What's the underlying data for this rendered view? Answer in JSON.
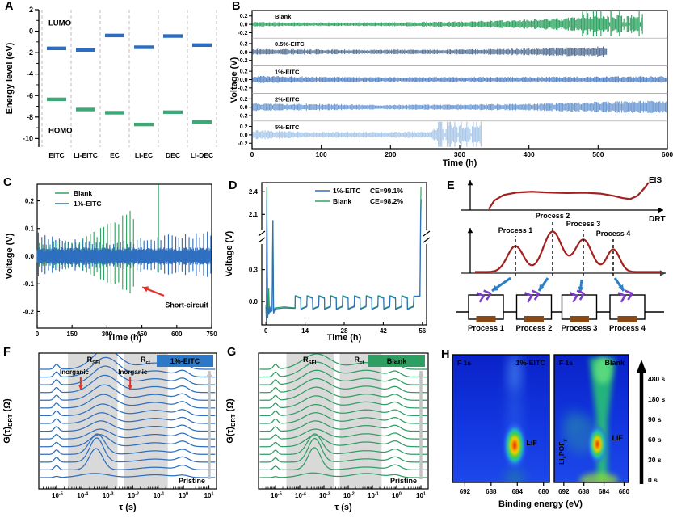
{
  "panels": {
    "A": {
      "label": "A",
      "ylabel": "Energy level (eV)",
      "lumo": "LUMO",
      "homo": "HOMO"
    },
    "B": {
      "label": "B",
      "ylabel": "Voltage (V)",
      "xlabel": "Time (h)"
    },
    "C": {
      "label": "C",
      "ylabel": "Voltage (V)",
      "xlabel": "Time (h)",
      "annotation": "Short-circuit"
    },
    "D": {
      "label": "D",
      "ylabel": "Voltage (V)",
      "xlabel": "Time (h)",
      "legend": [
        {
          "name": "1%-EITC",
          "ce": "CE=99.1%"
        },
        {
          "name": "Blank",
          "ce": "CE=98.2%"
        }
      ]
    },
    "E": {
      "label": "E",
      "eis": "EIS",
      "drt": "DRT",
      "peak_labels": [
        "Process 1",
        "Process 2",
        "Process 3",
        "Process 4"
      ],
      "circuit_labels": [
        "Process 1",
        "Process 2",
        "Process 3",
        "Process 4"
      ]
    },
    "F": {
      "label": "F",
      "badge": "1%-EITC",
      "ylabel_parts": [
        "G(τ)",
        "DRT",
        " (Ω)"
      ],
      "xlabel": "τ (s)",
      "band_labels": [
        [
          "R",
          "SEI"
        ],
        [
          "R",
          "ct"
        ]
      ],
      "inorganic": "Inorganic",
      "pristine": "Pristine"
    },
    "G": {
      "label": "G",
      "badge": "Blank",
      "ylabel_parts": [
        "G(τ)",
        "DRT",
        " (Ω)"
      ],
      "xlabel": "τ (s)",
      "band_labels": [
        [
          "R",
          "SEI"
        ],
        [
          "R",
          "ct"
        ]
      ],
      "pristine": "Pristine"
    },
    "H": {
      "label": "H",
      "xlabel": "Binding energy (eV)",
      "panels": [
        {
          "corner": "F 1s",
          "name": "1%-EITC",
          "species": "LiF"
        },
        {
          "corner": "F 1s",
          "name": "Blank",
          "species": "LiF",
          "extra_parts": [
            "Li",
            "x",
            "POF",
            "y"
          ]
        }
      ],
      "times": [
        "480 s",
        "180 s",
        "90 s",
        "60 s",
        "30 s",
        "0 s"
      ]
    }
  },
  "chart_data": [
    {
      "panel": "A",
      "type": "scatter",
      "categories": [
        "EITC",
        "Li-EITC",
        "EC",
        "Li-EC",
        "DEC",
        "Li-DEC"
      ],
      "series": [
        {
          "name": "LUMO",
          "color": "#2d6cc0",
          "values": [
            -1.6,
            -1.75,
            -0.4,
            -1.5,
            -0.45,
            -1.3
          ]
        },
        {
          "name": "HOMO",
          "color": "#3fa877",
          "values": [
            -6.35,
            -7.3,
            -7.6,
            -8.7,
            -7.55,
            -8.45
          ]
        }
      ],
      "ylim": [
        -10.8,
        2
      ],
      "yticks": [
        2,
        0,
        -2,
        -4,
        -6,
        -8,
        -10
      ]
    },
    {
      "panel": "B",
      "type": "line",
      "xlim": [
        0,
        600
      ],
      "xticks": [
        0,
        100,
        200,
        300,
        400,
        500,
        600
      ],
      "sub_ylim": [
        -0.33,
        0.33
      ],
      "sub_yticks": [
        0.2,
        0.0,
        -0.2
      ],
      "traces": [
        {
          "name": "Blank",
          "color": "#33a464",
          "end": 565,
          "chaos_from": 470,
          "envelope": [
            [
              0,
              0.06
            ],
            [
              80,
              0.045
            ],
            [
              200,
              0.05
            ],
            [
              300,
              0.07
            ],
            [
              380,
              0.1
            ],
            [
              450,
              0.15
            ],
            [
              500,
              0.2
            ],
            [
              565,
              0.24
            ]
          ]
        },
        {
          "name": "0.5%-EITC",
          "color": "#5a7499",
          "end": 512,
          "chaos_from": null,
          "envelope": [
            [
              0,
              0.075
            ],
            [
              150,
              0.055
            ],
            [
              300,
              0.06
            ],
            [
              420,
              0.09
            ],
            [
              512,
              0.13
            ]
          ]
        },
        {
          "name": "1%-EITC",
          "color": "#5b87c6",
          "end": 600,
          "chaos_from": null,
          "envelope": [
            [
              0,
              0.09
            ],
            [
              150,
              0.06
            ],
            [
              400,
              0.065
            ],
            [
              600,
              0.08
            ]
          ]
        },
        {
          "name": "2%-EITC",
          "color": "#6f9bd4",
          "end": 600,
          "chaos_from": null,
          "envelope": [
            [
              0,
              0.095
            ],
            [
              200,
              0.06
            ],
            [
              400,
              0.08
            ],
            [
              500,
              0.13
            ],
            [
              600,
              0.17
            ]
          ]
        },
        {
          "name": "5%-EITC",
          "color": "#abc9e9",
          "end": 332,
          "chaos_from": 266,
          "envelope": [
            [
              0,
              0.12
            ],
            [
              80,
              0.07
            ],
            [
              200,
              0.07
            ],
            [
              258,
              0.09
            ],
            [
              268,
              0.2
            ],
            [
              332,
              0.24
            ]
          ]
        }
      ]
    },
    {
      "panel": "C",
      "type": "line",
      "xlim": [
        0,
        750
      ],
      "xticks": [
        0,
        150,
        300,
        450,
        600,
        750
      ],
      "ylim": [
        -0.26,
        0.26
      ],
      "yticks": [
        0.2,
        0.1,
        0.0,
        -0.1,
        -0.2
      ],
      "annot_color": "#e8312a",
      "series": [
        {
          "name": "Blank",
          "color": "#33a464",
          "start": 8,
          "end": 425,
          "period": 15.5,
          "outlier_t": 521,
          "envelope": [
            [
              0,
              0.05
            ],
            [
              150,
              0.06
            ],
            [
              250,
              0.09
            ],
            [
              330,
              0.13
            ],
            [
              400,
              0.17
            ],
            [
              425,
              0.17
            ]
          ]
        },
        {
          "name": "1%-EITC",
          "color": "#2f6fc0",
          "start": 5,
          "end": 748,
          "period": 14.8,
          "envelope": [
            [
              0,
              0.1
            ],
            [
              120,
              0.06
            ],
            [
              350,
              0.055
            ],
            [
              600,
              0.08
            ],
            [
              748,
              0.1
            ]
          ]
        }
      ]
    },
    {
      "panel": "D",
      "type": "line",
      "xticks": [
        0,
        14,
        28,
        42,
        56
      ],
      "lower_ticks": [
        0.0,
        0.3
      ],
      "upper_ticks": [
        2.1,
        2.4
      ],
      "green": "#33a464",
      "blue": "#2f6fc0",
      "ce_color": "#d42020",
      "pre_green": [
        [
          0,
          -0.03
        ],
        [
          0.15,
          -0.17
        ],
        [
          0.3,
          2.46
        ],
        [
          0.5,
          0.3
        ],
        [
          0.62,
          -0.13
        ],
        [
          0.85,
          -0.1
        ],
        [
          1.0,
          0.12
        ],
        [
          1.2,
          -0.05
        ],
        [
          1.5,
          -0.1
        ],
        [
          2.2,
          -0.09
        ],
        [
          2.45,
          2.0
        ],
        [
          2.7,
          -0.1
        ],
        [
          3.2,
          -0.06
        ],
        [
          6.5,
          -0.05
        ],
        [
          10.42,
          -0.06
        ]
      ],
      "pre_blue": [
        [
          0,
          -0.05
        ],
        [
          0.15,
          -0.19
        ],
        [
          0.3,
          2.28
        ],
        [
          0.5,
          0.25
        ],
        [
          0.65,
          -0.15
        ],
        [
          0.9,
          -0.06
        ],
        [
          1.1,
          -0.12
        ],
        [
          1.4,
          -0.05
        ],
        [
          1.7,
          -0.1
        ],
        [
          2.2,
          -0.08
        ],
        [
          2.5,
          2.02
        ],
        [
          2.75,
          -0.11
        ],
        [
          3.3,
          -0.07
        ],
        [
          6.5,
          -0.06
        ],
        [
          10.42,
          -0.065
        ]
      ],
      "cycles": {
        "start": 10.45,
        "n": 10,
        "period": 4.24,
        "high": 0.052,
        "high2": 0.033,
        "low": -0.071,
        "low2": -0.047
      },
      "post_green": [
        [
          52.95,
          0.05
        ],
        [
          55.1,
          0.052
        ],
        [
          55.35,
          2.1
        ],
        [
          55.5,
          2.46
        ]
      ],
      "post_blue": [
        [
          52.95,
          0.048
        ],
        [
          55.15,
          0.05
        ],
        [
          55.4,
          2.05
        ],
        [
          55.55,
          2.3
        ]
      ]
    },
    {
      "panel": "E",
      "type": "diagram",
      "curve_color": "#a3201f",
      "arrow_color": "#2a7fc8",
      "cpe_color": "#7d3cc8",
      "res_color": "#8a4a15",
      "eis_curve": [
        [
          0.1,
          0.04
        ],
        [
          0.13,
          0.35
        ],
        [
          0.18,
          0.55
        ],
        [
          0.25,
          0.64
        ],
        [
          0.33,
          0.67
        ],
        [
          0.42,
          0.64
        ],
        [
          0.52,
          0.62
        ],
        [
          0.62,
          0.63
        ],
        [
          0.7,
          0.6
        ],
        [
          0.77,
          0.52
        ],
        [
          0.82,
          0.44
        ],
        [
          0.86,
          0.4
        ],
        [
          0.9,
          0.52
        ],
        [
          0.935,
          0.78
        ],
        [
          0.96,
          1.0
        ]
      ],
      "drt": {
        "centers": [
          98,
          144,
          182,
          219
        ],
        "heights": [
          32,
          50,
          40,
          28
        ],
        "sigmas": [
          10,
          11.5,
          10.5,
          8
        ]
      },
      "cells": [
        61.5,
        121,
        177,
        236.5
      ],
      "arrows": [
        [
          92,
          134,
          69,
          150
        ],
        [
          138,
          134,
          127,
          150
        ],
        [
          180,
          136,
          178,
          152
        ],
        [
          221,
          134,
          232,
          150
        ]
      ]
    },
    {
      "panel": "F",
      "type": "waterfall",
      "color": "#2e6fbe",
      "badge_color": "#2e78c8",
      "inorg_color": "#e8312a",
      "xlog_lim": [
        -5.7,
        1.3
      ],
      "xticks_exp": [
        -5,
        -4,
        -3,
        -2,
        -1,
        0,
        1
      ],
      "bands": [
        [
          -4.55,
          -2.6
        ],
        [
          -2.35,
          -0.62
        ]
      ],
      "band_label_x": [
        -3.55,
        -1.5
      ],
      "c2": -1.12,
      "c3": -0.02,
      "inorganic": [
        [
          -4.3,
          -4.05
        ],
        [
          -2.0,
          -2.1
        ]
      ],
      "curves": [
        [
          0.12,
          -3.5,
          0.45,
          0.55,
          0.3,
          0.22
        ],
        [
          0.45,
          -3.45,
          2.3,
          0.26,
          0.28,
          0.45
        ],
        [
          0.5,
          -3.42,
          2.6,
          0.27,
          0.33,
          0.5
        ],
        [
          0.48,
          -3.4,
          2.2,
          0.3,
          0.38,
          0.48
        ],
        [
          0.46,
          -3.3,
          1.3,
          0.38,
          0.42,
          0.52
        ],
        [
          0.48,
          -3.28,
          1.05,
          0.42,
          0.48,
          0.52
        ],
        [
          0.5,
          -3.25,
          1.1,
          0.44,
          0.52,
          0.55
        ],
        [
          0.5,
          -3.22,
          1.15,
          0.45,
          0.55,
          0.55
        ],
        [
          0.52,
          -3.18,
          1.25,
          0.46,
          0.58,
          0.55
        ],
        [
          0.52,
          -3.15,
          1.45,
          0.48,
          0.6,
          0.58
        ],
        [
          0.54,
          -3.12,
          1.65,
          0.48,
          0.62,
          0.58
        ],
        [
          0.54,
          -3.1,
          1.85,
          0.5,
          0.63,
          0.58
        ],
        [
          0.55,
          -3.08,
          2.0,
          0.5,
          0.65,
          0.6
        ],
        [
          0.55,
          -3.06,
          2.1,
          0.52,
          0.66,
          0.6
        ],
        [
          0.52,
          -3.05,
          2.2,
          0.52,
          0.68,
          0.6
        ]
      ]
    },
    {
      "panel": "G",
      "type": "waterfall",
      "color": "#2f9e63",
      "badge_color": "#2f9e63",
      "xlog_lim": [
        -5.7,
        1.3
      ],
      "xticks_exp": [
        -5,
        -4,
        -3,
        -2,
        -1,
        0,
        1
      ],
      "bands": [
        [
          -4.55,
          -2.6
        ],
        [
          -2.35,
          -0.62
        ]
      ],
      "band_label_x": [
        -3.6,
        -1.55
      ],
      "c2": -1.25,
      "c3": -0.05,
      "curves": [
        [
          0.1,
          -3.45,
          0.5,
          0.5,
          0.45,
          0.25
        ],
        [
          0.4,
          -3.4,
          2.4,
          0.26,
          0.3,
          0.5
        ],
        [
          0.45,
          -3.38,
          2.55,
          0.27,
          0.35,
          0.52
        ],
        [
          0.45,
          -3.38,
          2.2,
          0.3,
          0.4,
          0.52
        ],
        [
          0.46,
          -3.36,
          1.2,
          0.4,
          0.5,
          0.55
        ],
        [
          0.46,
          -3.35,
          1.05,
          0.45,
          0.55,
          0.55
        ],
        [
          0.48,
          -3.35,
          1.1,
          0.46,
          0.6,
          0.55
        ],
        [
          0.48,
          -3.34,
          1.15,
          0.48,
          0.62,
          0.55
        ],
        [
          0.5,
          -3.33,
          1.2,
          0.5,
          0.63,
          0.55
        ],
        [
          0.5,
          -3.32,
          1.3,
          0.52,
          0.65,
          0.55
        ],
        [
          0.5,
          -3.32,
          1.4,
          0.54,
          0.66,
          0.55
        ],
        [
          0.52,
          -3.31,
          1.5,
          0.55,
          0.68,
          0.55
        ],
        [
          0.52,
          -3.3,
          1.55,
          0.56,
          0.7,
          0.55
        ],
        [
          0.52,
          -3.3,
          1.6,
          0.56,
          0.72,
          0.55
        ],
        [
          0.5,
          -3.3,
          1.65,
          0.58,
          0.72,
          0.55
        ]
      ]
    },
    {
      "panel": "H",
      "type": "heatmap",
      "xticks": [
        692,
        688,
        684,
        680
      ],
      "xlim": [
        693.9,
        679.1
      ],
      "maps": [
        {
          "name": "1%-EITC",
          "hotspot_ev": 684.4,
          "hotspot_yfrac": 0.71,
          "column_ev": 684.4
        },
        {
          "name": "Blank",
          "hotspot_ev": 685.3,
          "hotspot_yfrac": 0.7,
          "column_ev": 684.2,
          "cloud_ev": 688.6
        }
      ],
      "times": [
        "480 s",
        "180 s",
        "90 s",
        "60 s",
        "30 s",
        "0 s"
      ]
    }
  ]
}
